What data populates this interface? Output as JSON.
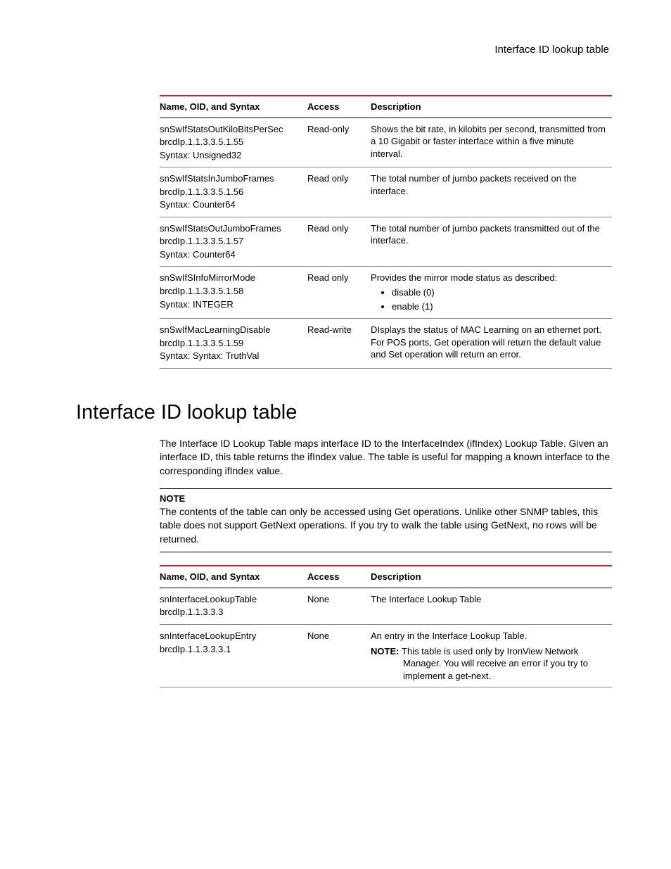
{
  "header": {
    "running_title": "Interface ID lookup table"
  },
  "table1": {
    "headers": {
      "name": "Name, OID, and Syntax",
      "access": "Access",
      "desc": "Description"
    },
    "rows": [
      {
        "name": "snSwIfStatsOutKiloBitsPerSec",
        "oid": "brcdIp.1.1.3.3.5.1.55",
        "syntax": "Syntax: Unsigned32",
        "access": "Read-only",
        "desc": "Shows the bit rate, in kilobits per second, transmitted from a 10 Gigabit or faster interface within a five minute interval."
      },
      {
        "name": "snSwIfStatsInJumboFrames",
        "oid": "brcdIp.1.1.3.3.5.1.56",
        "syntax": "Syntax: Counter64",
        "access": "Read only",
        "desc": "The total number of jumbo packets received on the interface."
      },
      {
        "name": "snSwIfStatsOutJumboFrames",
        "oid": "brcdIp.1.1.3.3.5.1.57",
        "syntax": "Syntax: Counter64",
        "access": "Read only",
        "desc": "The total number of jumbo packets transmitted out of the interface."
      },
      {
        "name": "snSwIfSInfoMirrorMode",
        "oid": "brcdIp.1.1.3.3.5.1.58",
        "syntax": "Syntax: INTEGER",
        "access": "Read only",
        "desc": "Provides the mirror mode status as described:",
        "options": [
          "disable (0)",
          "enable (1)"
        ]
      },
      {
        "name": "snSwIfMacLearningDisable",
        "oid": "brcdIp.1.1.3.3.5.1.59",
        "syntax": "Syntax: Syntax: TruthVal",
        "access": "Read-write",
        "desc": "DIsplays the status of MAC Learning on an ethernet port.",
        "desc2": "For POS ports, Get operation will return the default value and Set operation will return an error."
      }
    ]
  },
  "section": {
    "heading": "Interface ID lookup table",
    "intro": "The Interface ID Lookup Table maps interface ID to the InterfaceIndex (ifIndex) Lookup Table. Given an interface ID, this table returns the ifIndex value. The table is useful for mapping a known interface to the corresponding ifIndex value.",
    "note_label": "NOTE",
    "note_text": "The contents of the table can only be accessed using Get operations. Unlike other SNMP tables, this table does not support GetNext operations. If you try to walk the table using GetNext, no rows will be returned."
  },
  "table2": {
    "headers": {
      "name": "Name, OID, and Syntax",
      "access": "Access",
      "desc": "Description"
    },
    "rows": [
      {
        "name": "snInterfaceLookupTable",
        "oid": "brcdIp.1.1.3.3.3",
        "access": "None",
        "desc": "The Interface Lookup Table"
      },
      {
        "name": "snInterfaceLookupEntry",
        "oid": "brcdIp.1.1.3.3.3.1",
        "access": "None",
        "desc": "An entry in the Interface Lookup Table.",
        "inline_note_label": "NOTE:",
        "inline_note": "This table is used only by IronView Network Manager. You will receive an error if you try to implement a get-next."
      }
    ]
  }
}
